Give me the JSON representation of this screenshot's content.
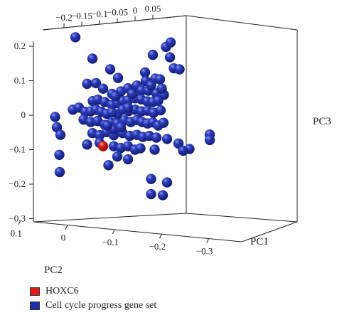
{
  "chart_data": {
    "type": "scatter",
    "title": "",
    "axes": {
      "pc1": {
        "label": "PC1",
        "ticks": [],
        "range": [
          -0.3,
          0.1
        ]
      },
      "pc2": {
        "label": "PC2",
        "ticks": [
          "0.1",
          "0",
          "−0.1",
          "−0.2",
          "−0.3"
        ],
        "range": [
          -0.3,
          0.1
        ]
      },
      "pc3": {
        "label": "PC3",
        "ticks": [
          "0.2",
          "0.1",
          "0",
          "−0.1",
          "−0.2",
          "−0.3"
        ],
        "range": [
          -0.3,
          0.2
        ]
      },
      "top": {
        "label": "",
        "ticks": [
          "−0.2",
          "−0.15",
          "−0.1",
          "−0.05",
          "0",
          "0.05"
        ],
        "range": [
          -0.2,
          0.05
        ]
      }
    },
    "series": [
      {
        "name": "HOXC6",
        "color": "#e51a1a",
        "points": [
          {
            "top": -0.09,
            "pc3": -0.09
          }
        ]
      },
      {
        "name": "Cell cycle progress gene set",
        "color": "#1f2fa8",
        "points": [
          {
            "top": -0.168,
            "pc3": 0.226
          },
          {
            "top": -0.12,
            "pc3": 0.164
          },
          {
            "top": -0.07,
            "pc3": 0.133
          },
          {
            "top": 0.028,
            "pc3": 0.124
          },
          {
            "top": -0.048,
            "pc3": 0.108
          },
          {
            "top": -0.05,
            "pc3": 0.003
          },
          {
            "top": 0.05,
            "pc3": 0.175
          },
          {
            "top": 0.087,
            "pc3": 0.198
          },
          {
            "top": 0.1,
            "pc3": 0.211
          },
          {
            "top": 0.098,
            "pc3": 0.168
          },
          {
            "top": 0.109,
            "pc3": 0.136
          },
          {
            "top": 0.125,
            "pc3": 0.133
          },
          {
            "top": -0.135,
            "pc3": 0.091
          },
          {
            "top": -0.11,
            "pc3": 0.093
          },
          {
            "top": 0.057,
            "pc3": 0.106
          },
          {
            "top": 0.07,
            "pc3": 0.104
          },
          {
            "top": 0.03,
            "pc3": 0.099
          },
          {
            "top": -0.09,
            "pc3": 0.077
          },
          {
            "top": -0.065,
            "pc3": 0.062
          },
          {
            "top": -0.04,
            "pc3": 0.069
          },
          {
            "top": -0.02,
            "pc3": 0.078
          },
          {
            "top": 0.005,
            "pc3": 0.086
          },
          {
            "top": 0.018,
            "pc3": 0.072
          },
          {
            "top": 0.037,
            "pc3": 0.071
          },
          {
            "top": 0.06,
            "pc3": 0.063
          },
          {
            "top": 0.081,
            "pc3": 0.059
          },
          {
            "top": -0.119,
            "pc3": 0.041
          },
          {
            "top": -0.105,
            "pc3": 0.045
          },
          {
            "top": -0.085,
            "pc3": 0.038
          },
          {
            "top": -0.065,
            "pc3": 0.03
          },
          {
            "top": -0.05,
            "pc3": 0.035
          },
          {
            "top": -0.035,
            "pc3": 0.041
          },
          {
            "top": -0.02,
            "pc3": 0.043
          },
          {
            "top": 0.0,
            "pc3": 0.049
          },
          {
            "top": 0.017,
            "pc3": 0.046
          },
          {
            "top": 0.034,
            "pc3": 0.04
          },
          {
            "top": 0.05,
            "pc3": 0.038
          },
          {
            "top": 0.065,
            "pc3": 0.042
          },
          {
            "top": -0.175,
            "pc3": 0.016
          },
          {
            "top": -0.158,
            "pc3": 0.022
          },
          {
            "top": -0.14,
            "pc3": 0.01
          },
          {
            "top": -0.125,
            "pc3": 0.011
          },
          {
            "top": -0.11,
            "pc3": 0.016
          },
          {
            "top": -0.095,
            "pc3": 0.01
          },
          {
            "top": -0.08,
            "pc3": 0.004
          },
          {
            "top": -0.065,
            "pc3": 0.008
          },
          {
            "top": -0.035,
            "pc3": 0.016
          },
          {
            "top": -0.018,
            "pc3": 0.012
          },
          {
            "top": 0.0,
            "pc3": 0.016
          },
          {
            "top": 0.018,
            "pc3": 0.011
          },
          {
            "top": 0.035,
            "pc3": 0.013
          },
          {
            "top": 0.052,
            "pc3": 0.007
          },
          {
            "top": 0.072,
            "pc3": 0.014
          },
          {
            "top": -0.145,
            "pc3": -0.013
          },
          {
            "top": -0.125,
            "pc3": -0.02
          },
          {
            "top": -0.105,
            "pc3": -0.017
          },
          {
            "top": -0.085,
            "pc3": -0.028
          },
          {
            "top": -0.067,
            "pc3": -0.022
          },
          {
            "top": -0.05,
            "pc3": -0.024
          },
          {
            "top": -0.03,
            "pc3": -0.015
          },
          {
            "top": -0.012,
            "pc3": -0.02
          },
          {
            "top": 0.005,
            "pc3": -0.014
          },
          {
            "top": 0.02,
            "pc3": -0.02
          },
          {
            "top": 0.035,
            "pc3": -0.024
          },
          {
            "top": 0.05,
            "pc3": -0.021
          },
          {
            "top": -0.225,
            "pc3": -0.005
          },
          {
            "top": -0.22,
            "pc3": -0.035
          },
          {
            "top": -0.21,
            "pc3": -0.057
          },
          {
            "top": -0.12,
            "pc3": -0.052
          },
          {
            "top": -0.1,
            "pc3": -0.058
          },
          {
            "top": -0.08,
            "pc3": -0.049
          },
          {
            "top": -0.06,
            "pc3": -0.058
          },
          {
            "top": -0.035,
            "pc3": -0.052
          },
          {
            "top": -0.015,
            "pc3": -0.06
          },
          {
            "top": 0.005,
            "pc3": -0.057
          },
          {
            "top": 0.022,
            "pc3": -0.063
          },
          {
            "top": 0.04,
            "pc3": -0.06
          },
          {
            "top": 0.06,
            "pc3": -0.065
          },
          {
            "top": -0.1,
            "pc3": -0.08
          },
          {
            "top": -0.135,
            "pc3": -0.085
          },
          {
            "top": -0.06,
            "pc3": -0.09
          },
          {
            "top": -0.04,
            "pc3": -0.095
          },
          {
            "top": -0.02,
            "pc3": -0.09
          },
          {
            "top": 0.0,
            "pc3": -0.1
          },
          {
            "top": 0.015,
            "pc3": -0.096
          },
          {
            "top": 0.055,
            "pc3": -0.1
          },
          {
            "top": -0.05,
            "pc3": -0.12
          },
          {
            "top": -0.02,
            "pc3": -0.128
          },
          {
            "top": -0.075,
            "pc3": -0.145
          },
          {
            "top": 0.09,
            "pc3": -0.069
          },
          {
            "top": 0.122,
            "pc3": -0.082
          },
          {
            "top": 0.153,
            "pc3": -0.098
          },
          {
            "top": 0.21,
            "pc3": -0.056
          },
          {
            "top": 0.21,
            "pc3": -0.072
          },
          {
            "top": 0.135,
            "pc3": -0.103
          },
          {
            "top": -0.213,
            "pc3": -0.115
          },
          {
            "top": -0.212,
            "pc3": -0.165
          },
          {
            "top": 0.045,
            "pc3": -0.185
          },
          {
            "top": 0.09,
            "pc3": -0.195
          },
          {
            "top": 0.045,
            "pc3": -0.229
          },
          {
            "top": 0.078,
            "pc3": -0.232
          },
          {
            "top": -0.062,
            "pc3": -0.041
          },
          {
            "top": -0.04,
            "pc3": -0.035
          },
          {
            "top": -0.078,
            "pc3": -0.03
          },
          {
            "top": 0.065,
            "pc3": -0.03
          },
          {
            "top": 0.08,
            "pc3": -0.022
          },
          {
            "top": -0.02,
            "pc3": 0.022
          },
          {
            "top": 0.075,
            "pc3": 0.077
          },
          {
            "top": -0.008,
            "pc3": 0.062
          },
          {
            "top": 0.045,
            "pc3": 0.086
          },
          {
            "top": -0.055,
            "pc3": 0.055
          }
        ]
      }
    ],
    "grid": false,
    "legend": "bottom-left"
  },
  "legend": {
    "items": [
      {
        "label": "HOXC6",
        "color": "#e51a1a"
      },
      {
        "label": "Cell cycle progress gene set",
        "color": "#1f2fa8"
      }
    ]
  }
}
